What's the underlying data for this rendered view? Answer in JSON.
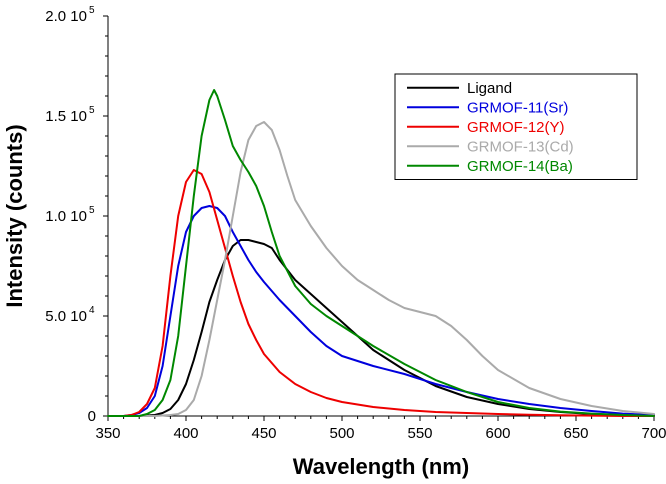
{
  "chart_data": {
    "type": "line",
    "title": "",
    "xlabel": "Wavelength (nm)",
    "ylabel": "Intensity (counts)",
    "xlim": [
      350,
      700
    ],
    "ylim": [
      0,
      200000
    ],
    "x_ticks": [
      {
        "value": 350,
        "label": "350"
      },
      {
        "value": 400,
        "label": "400"
      },
      {
        "value": 450,
        "label": "450"
      },
      {
        "value": 500,
        "label": "500"
      },
      {
        "value": 550,
        "label": "550"
      },
      {
        "value": 600,
        "label": "600"
      },
      {
        "value": 650,
        "label": "650"
      },
      {
        "value": 700,
        "label": "700"
      }
    ],
    "y_ticks": [
      {
        "value": 0,
        "mantissa": "0",
        "exponent": ""
      },
      {
        "value": 50000,
        "mantissa": "5.0 10",
        "exponent": "4"
      },
      {
        "value": 100000,
        "mantissa": "1.0 10",
        "exponent": "5"
      },
      {
        "value": 150000,
        "mantissa": "1.5 10",
        "exponent": "5"
      },
      {
        "value": 200000,
        "mantissa": "2.0 10",
        "exponent": "5"
      }
    ],
    "grid": false,
    "legend_position": "top-right",
    "series": [
      {
        "name": "Ligand",
        "color": "#000000",
        "x": [
          350,
          370,
          380,
          385,
          390,
          395,
          400,
          405,
          410,
          415,
          420,
          425,
          430,
          435,
          440,
          445,
          450,
          455,
          460,
          470,
          480,
          490,
          500,
          520,
          540,
          560,
          580,
          600,
          620,
          640,
          660,
          680,
          700
        ],
        "y": [
          0,
          0,
          500,
          1500,
          3500,
          8000,
          16000,
          28000,
          42000,
          57000,
          68000,
          78000,
          85000,
          88000,
          88000,
          87000,
          86000,
          84000,
          78000,
          68000,
          61000,
          54000,
          47000,
          33000,
          23000,
          15000,
          9500,
          6000,
          3500,
          2000,
          1000,
          500,
          0
        ]
      },
      {
        "name": "GRMOF-11(Sr)",
        "color": "#0000dd",
        "x": [
          350,
          360,
          365,
          370,
          375,
          380,
          385,
          390,
          395,
          400,
          405,
          410,
          415,
          420,
          425,
          430,
          435,
          440,
          445,
          450,
          460,
          470,
          480,
          490,
          500,
          520,
          540,
          560,
          580,
          600,
          620,
          640,
          660,
          680,
          700
        ],
        "y": [
          0,
          0,
          500,
          1500,
          4000,
          10000,
          25000,
          50000,
          75000,
          92000,
          100000,
          104000,
          105000,
          104000,
          100000,
          92000,
          85000,
          78000,
          72000,
          67000,
          58000,
          50000,
          42000,
          35000,
          30000,
          25000,
          21000,
          16000,
          12000,
          8500,
          6000,
          4000,
          2500,
          1200,
          500
        ]
      },
      {
        "name": "GRMOF-12(Y)",
        "color": "#ee0000",
        "x": [
          350,
          360,
          365,
          370,
          375,
          380,
          385,
          390,
          395,
          400,
          405,
          410,
          415,
          420,
          425,
          430,
          435,
          440,
          445,
          450,
          460,
          470,
          480,
          490,
          500,
          520,
          540,
          560,
          580,
          600,
          620,
          640,
          660,
          680,
          700
        ],
        "y": [
          0,
          0,
          500,
          2000,
          6000,
          14000,
          35000,
          70000,
          100000,
          117000,
          123000,
          121000,
          112000,
          98000,
          84000,
          70000,
          57000,
          46000,
          38000,
          31000,
          22000,
          16000,
          12000,
          9000,
          7000,
          4500,
          3000,
          2000,
          1500,
          1000,
          600,
          400,
          200,
          0,
          0
        ]
      },
      {
        "name": "GRMOF-13(Cd)",
        "color": "#aaaaaa",
        "x": [
          350,
          380,
          390,
          395,
          400,
          405,
          410,
          415,
          420,
          425,
          430,
          435,
          440,
          445,
          450,
          455,
          460,
          465,
          470,
          480,
          490,
          500,
          510,
          520,
          530,
          540,
          550,
          560,
          570,
          580,
          590,
          600,
          620,
          640,
          660,
          680,
          700
        ],
        "y": [
          0,
          0,
          500,
          1000,
          3000,
          8000,
          20000,
          38000,
          58000,
          78000,
          100000,
          122000,
          138000,
          145000,
          147000,
          143000,
          133000,
          120000,
          108000,
          95000,
          84000,
          75000,
          68000,
          63000,
          58000,
          54000,
          52000,
          50000,
          45000,
          38000,
          30000,
          23000,
          14000,
          8500,
          5000,
          2500,
          1000
        ]
      },
      {
        "name": "GRMOF-14(Ba)",
        "color": "#008800",
        "x": [
          350,
          370,
          375,
          380,
          385,
          390,
          395,
          400,
          405,
          410,
          415,
          418,
          420,
          425,
          430,
          435,
          440,
          445,
          450,
          455,
          460,
          470,
          480,
          490,
          500,
          520,
          540,
          560,
          580,
          600,
          620,
          640,
          660,
          680,
          700
        ],
        "y": [
          0,
          0,
          1000,
          3000,
          8000,
          18000,
          40000,
          75000,
          110000,
          140000,
          158000,
          163000,
          160000,
          148000,
          135000,
          128000,
          122000,
          115000,
          105000,
          92000,
          80000,
          65000,
          56000,
          50000,
          45000,
          35000,
          26000,
          18000,
          12000,
          7000,
          4000,
          2200,
          1200,
          500,
          0
        ]
      }
    ]
  }
}
